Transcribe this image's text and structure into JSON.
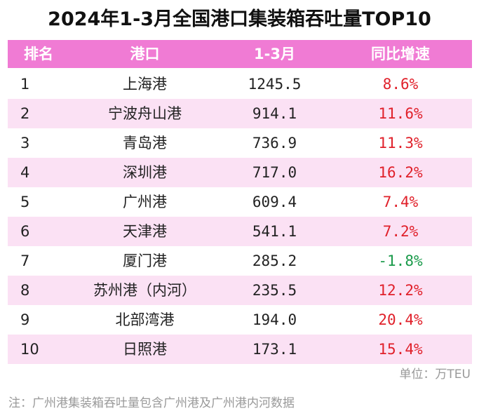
{
  "title": "2024年1-3月全国港口集装箱吞吐量TOP10",
  "header": {
    "rank": "排名",
    "port": "港口",
    "volume": "1-3月",
    "growth": "同比增速"
  },
  "rows": [
    {
      "rank": "1",
      "port": "上海港",
      "volume": "1245.5",
      "growth": "8.6%",
      "trend": "up"
    },
    {
      "rank": "2",
      "port": "宁波舟山港",
      "volume": "914.1",
      "growth": "11.6%",
      "trend": "up"
    },
    {
      "rank": "3",
      "port": "青岛港",
      "volume": "736.9",
      "growth": "11.3%",
      "trend": "up"
    },
    {
      "rank": "4",
      "port": "深圳港",
      "volume": "717.0",
      "growth": "16.2%",
      "trend": "up"
    },
    {
      "rank": "5",
      "port": "广州港",
      "volume": "609.4",
      "growth": "7.4%",
      "trend": "up"
    },
    {
      "rank": "6",
      "port": "天津港",
      "volume": "541.1",
      "growth": "7.2%",
      "trend": "up"
    },
    {
      "rank": "7",
      "port": "厦门港",
      "volume": "285.2",
      "growth": "-1.8%",
      "trend": "down"
    },
    {
      "rank": "8",
      "port": "苏州港（内河）",
      "volume": "235.5",
      "growth": "12.2%",
      "trend": "up"
    },
    {
      "rank": "9",
      "port": "北部湾港",
      "volume": "194.0",
      "growth": "20.4%",
      "trend": "up"
    },
    {
      "rank": "10",
      "port": "日照港",
      "volume": "173.1",
      "growth": "15.4%",
      "trend": "up"
    }
  ],
  "unit": "单位：万TEU",
  "note": "注：广州港集装箱吞吐量包含广州港及广州港内河数据",
  "colors": {
    "header_bg": "#f07bd4",
    "alt_row_bg": "#fbe1f4",
    "positive": "#e0202a",
    "negative": "#1a9a4a"
  }
}
